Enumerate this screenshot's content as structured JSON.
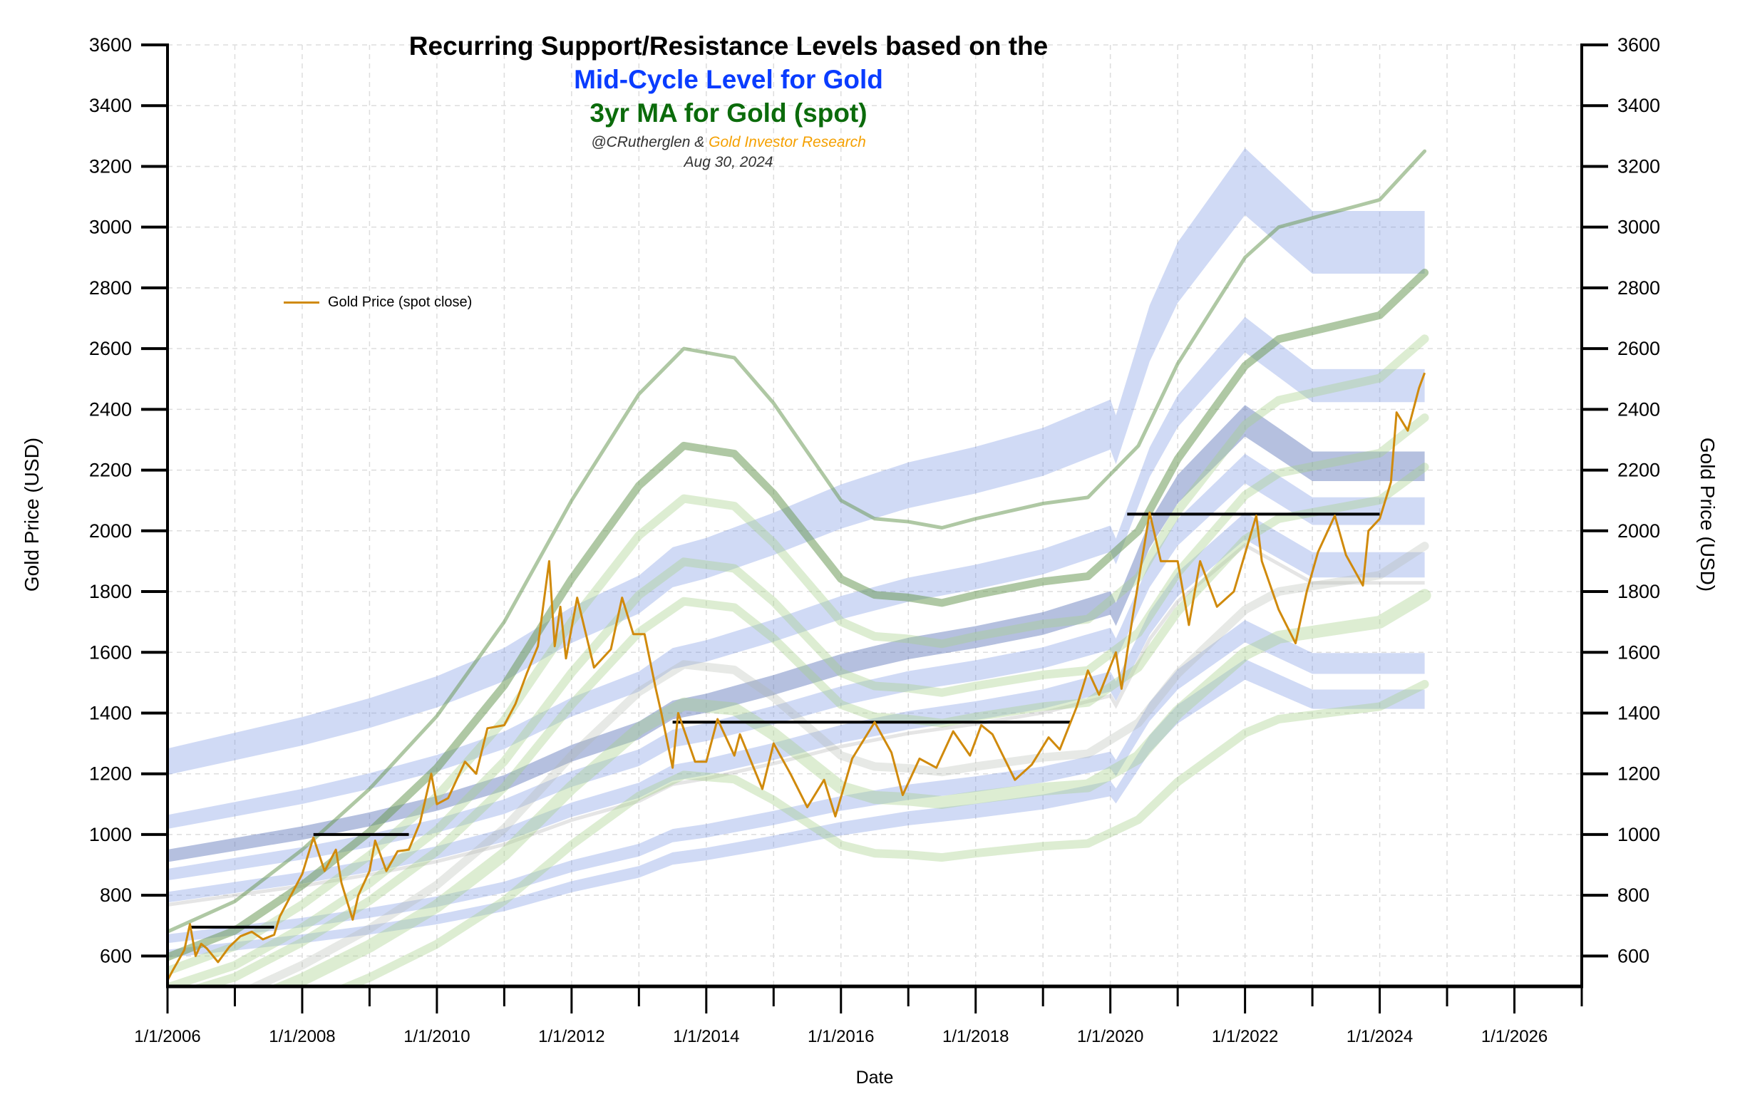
{
  "title": {
    "line1": "Recurring Support/Resistance Levels based on the",
    "line2": "Mid-Cycle Level for Gold",
    "line3": "3yr MA for Gold (spot)",
    "byline_author": "@CRutherglen &",
    "byline_org": "Gold Investor Research",
    "date": "Aug 30, 2024"
  },
  "colors": {
    "line2": "#0a3cff",
    "line3": "#0b6b0b",
    "byline_org": "#f5a000",
    "gold": "#d08a0c",
    "mid_cycle_band": "#6f8fe0",
    "mid_cycle_band_dark": "#5a73b8",
    "ma_dark": "#6e9a5a",
    "ma_light": "#a6d08a",
    "ma_grey": "#b0b6ac",
    "support_line": "#000000"
  },
  "chart_data": {
    "type": "line",
    "xlabel": "Date",
    "ylabel_left": "Gold Price (USD)",
    "ylabel_right": "Gold Price (USD)",
    "xlim": [
      "2006-01-01",
      "2027-01-01"
    ],
    "ylim": [
      500,
      3600
    ],
    "x_tick_labels": [
      "1/1/2006",
      "1/1/2008",
      "1/1/2010",
      "1/1/2012",
      "1/1/2014",
      "1/1/2016",
      "1/1/2018",
      "1/1/2020",
      "1/1/2022",
      "1/1/2024",
      "1/1/2026"
    ],
    "y_ticks": [
      600,
      800,
      1000,
      1200,
      1400,
      1600,
      1800,
      2000,
      2200,
      2400,
      2600,
      2800,
      3000,
      3200,
      3400,
      3600
    ],
    "grid": true,
    "legend": {
      "placement": "upper-left",
      "entries": [
        "Gold Price (spot close)"
      ]
    },
    "gold_price": {
      "name": "Gold Price (spot close)",
      "points": [
        [
          "2006-01",
          520
        ],
        [
          "2006-02",
          555
        ],
        [
          "2006-04",
          620
        ],
        [
          "2006-05",
          705
        ],
        [
          "2006-06",
          600
        ],
        [
          "2006-07",
          640
        ],
        [
          "2006-08",
          625
        ],
        [
          "2006-10",
          580
        ],
        [
          "2006-12",
          630
        ],
        [
          "2007-02",
          665
        ],
        [
          "2007-04",
          680
        ],
        [
          "2007-06",
          655
        ],
        [
          "2007-08",
          670
        ],
        [
          "2007-09",
          730
        ],
        [
          "2007-11",
          800
        ],
        [
          "2008-01",
          870
        ],
        [
          "2008-03",
          990
        ],
        [
          "2008-05",
          880
        ],
        [
          "2008-07",
          950
        ],
        [
          "2008-08",
          840
        ],
        [
          "2008-09",
          780
        ],
        [
          "2008-10",
          720
        ],
        [
          "2008-11",
          800
        ],
        [
          "2009-01",
          880
        ],
        [
          "2009-02",
          980
        ],
        [
          "2009-04",
          880
        ],
        [
          "2009-06",
          945
        ],
        [
          "2009-08",
          950
        ],
        [
          "2009-10",
          1040
        ],
        [
          "2009-12",
          1200
        ],
        [
          "2010-01",
          1100
        ],
        [
          "2010-03",
          1120
        ],
        [
          "2010-06",
          1240
        ],
        [
          "2010-08",
          1200
        ],
        [
          "2010-10",
          1350
        ],
        [
          "2011-01",
          1360
        ],
        [
          "2011-03",
          1430
        ],
        [
          "2011-05",
          1530
        ],
        [
          "2011-07",
          1620
        ],
        [
          "2011-09",
          1900
        ],
        [
          "2011-10",
          1620
        ],
        [
          "2011-11",
          1750
        ],
        [
          "2011-12",
          1580
        ],
        [
          "2012-02",
          1780
        ],
        [
          "2012-05",
          1550
        ],
        [
          "2012-08",
          1610
        ],
        [
          "2012-10",
          1780
        ],
        [
          "2012-12",
          1660
        ],
        [
          "2013-02",
          1660
        ],
        [
          "2013-04",
          1480
        ],
        [
          "2013-05",
          1400
        ],
        [
          "2013-07",
          1220
        ],
        [
          "2013-08",
          1400
        ],
        [
          "2013-11",
          1240
        ],
        [
          "2014-01",
          1240
        ],
        [
          "2014-03",
          1380
        ],
        [
          "2014-06",
          1260
        ],
        [
          "2014-07",
          1330
        ],
        [
          "2014-11",
          1150
        ],
        [
          "2015-01",
          1300
        ],
        [
          "2015-04",
          1200
        ],
        [
          "2015-07",
          1090
        ],
        [
          "2015-10",
          1180
        ],
        [
          "2015-12",
          1060
        ],
        [
          "2016-03",
          1250
        ],
        [
          "2016-07",
          1370
        ],
        [
          "2016-10",
          1270
        ],
        [
          "2016-12",
          1130
        ],
        [
          "2017-03",
          1250
        ],
        [
          "2017-06",
          1220
        ],
        [
          "2017-09",
          1340
        ],
        [
          "2017-12",
          1260
        ],
        [
          "2018-02",
          1360
        ],
        [
          "2018-04",
          1330
        ],
        [
          "2018-08",
          1180
        ],
        [
          "2018-11",
          1230
        ],
        [
          "2019-02",
          1320
        ],
        [
          "2019-04",
          1280
        ],
        [
          "2019-07",
          1420
        ],
        [
          "2019-09",
          1540
        ],
        [
          "2019-11",
          1460
        ],
        [
          "2020-02",
          1600
        ],
        [
          "2020-03",
          1480
        ],
        [
          "2020-05",
          1720
        ],
        [
          "2020-08",
          2060
        ],
        [
          "2020-10",
          1900
        ],
        [
          "2021-01",
          1900
        ],
        [
          "2021-03",
          1690
        ],
        [
          "2021-05",
          1900
        ],
        [
          "2021-08",
          1750
        ],
        [
          "2021-11",
          1800
        ],
        [
          "2022-03",
          2050
        ],
        [
          "2022-04",
          1900
        ],
        [
          "2022-07",
          1740
        ],
        [
          "2022-10",
          1630
        ],
        [
          "2022-12",
          1800
        ],
        [
          "2023-02",
          1930
        ],
        [
          "2023-05",
          2050
        ],
        [
          "2023-07",
          1920
        ],
        [
          "2023-10",
          1820
        ],
        [
          "2023-11",
          2000
        ],
        [
          "2024-01",
          2040
        ],
        [
          "2024-03",
          2160
        ],
        [
          "2024-04",
          2390
        ],
        [
          "2024-06",
          2330
        ],
        [
          "2024-07",
          2400
        ],
        [
          "2024-08",
          2470
        ],
        [
          "2024-09",
          2520
        ]
      ]
    },
    "support_resistance_lines": [
      {
        "start": "2006-05",
        "end": "2007-08",
        "price": 695
      },
      {
        "start": "2008-03",
        "end": "2009-08",
        "price": 1000
      },
      {
        "start": "2013-07",
        "end": "2019-06",
        "price": 1370
      },
      {
        "start": "2020-04",
        "end": "2024-01",
        "price": 2055
      }
    ],
    "mid_cycle_level": {
      "base": [
        [
          "2006-01",
          1240
        ],
        [
          "2007-01",
          1290
        ],
        [
          "2008-01",
          1340
        ],
        [
          "2009-01",
          1400
        ],
        [
          "2010-01",
          1470
        ],
        [
          "2011-01",
          1560
        ],
        [
          "2012-01",
          1690
        ],
        [
          "2013-01",
          1790
        ],
        [
          "2013-07",
          1880
        ],
        [
          "2014-01",
          1910
        ],
        [
          "2015-01",
          1990
        ],
        [
          "2016-01",
          2080
        ],
        [
          "2017-01",
          2150
        ],
        [
          "2018-01",
          2200
        ],
        [
          "2019-01",
          2260
        ],
        [
          "2020-01",
          2350
        ],
        [
          "2020-02",
          2300
        ],
        [
          "2020-08",
          2650
        ],
        [
          "2021-01",
          2850
        ],
        [
          "2022-01",
          3150
        ],
        [
          "2022-07",
          3050
        ],
        [
          "2023-01",
          2950
        ],
        [
          "2024-01",
          2950
        ],
        [
          "2024-09",
          2950
        ]
      ],
      "bands": [
        {
          "multiple": 1.0,
          "shade": "light"
        },
        {
          "multiple": 0.84,
          "shade": "light"
        },
        {
          "multiple": 0.75,
          "shade": "dark"
        },
        {
          "multiple": 0.7,
          "shade": "light"
        },
        {
          "multiple": 0.64,
          "shade": "light"
        },
        {
          "multiple": 0.62,
          "shade": "grey"
        },
        {
          "multiple": 0.53,
          "shade": "light"
        },
        {
          "multiple": 0.49,
          "shade": "light"
        }
      ]
    },
    "ma_3yr": {
      "base": [
        [
          "2006-01",
          680
        ],
        [
          "2007-01",
          780
        ],
        [
          "2008-01",
          950
        ],
        [
          "2009-01",
          1150
        ],
        [
          "2010-01",
          1390
        ],
        [
          "2011-01",
          1700
        ],
        [
          "2012-01",
          2100
        ],
        [
          "2013-01",
          2450
        ],
        [
          "2013-09",
          2600
        ],
        [
          "2014-06",
          2570
        ],
        [
          "2015-01",
          2420
        ],
        [
          "2016-01",
          2100
        ],
        [
          "2016-07",
          2040
        ],
        [
          "2017-01",
          2030
        ],
        [
          "2017-07",
          2010
        ],
        [
          "2018-01",
          2040
        ],
        [
          "2019-01",
          2090
        ],
        [
          "2019-09",
          2110
        ],
        [
          "2020-06",
          2280
        ],
        [
          "2021-01",
          2550
        ],
        [
          "2022-01",
          2900
        ],
        [
          "2022-07",
          3000
        ],
        [
          "2023-07",
          3060
        ],
        [
          "2024-01",
          3090
        ],
        [
          "2024-09",
          3250
        ]
      ],
      "bands": [
        {
          "multiple": 1.0,
          "shade": "dark"
        },
        {
          "multiple": 0.877,
          "shade": "dark"
        },
        {
          "multiple": 0.81,
          "shade": "light"
        },
        {
          "multiple": 0.73,
          "shade": "light"
        },
        {
          "multiple": 0.68,
          "shade": "light"
        },
        {
          "multiple": 0.6,
          "shade": "grey"
        },
        {
          "multiple": 0.55,
          "shade": "light"
        },
        {
          "multiple": 0.46,
          "shade": "light"
        }
      ]
    }
  }
}
